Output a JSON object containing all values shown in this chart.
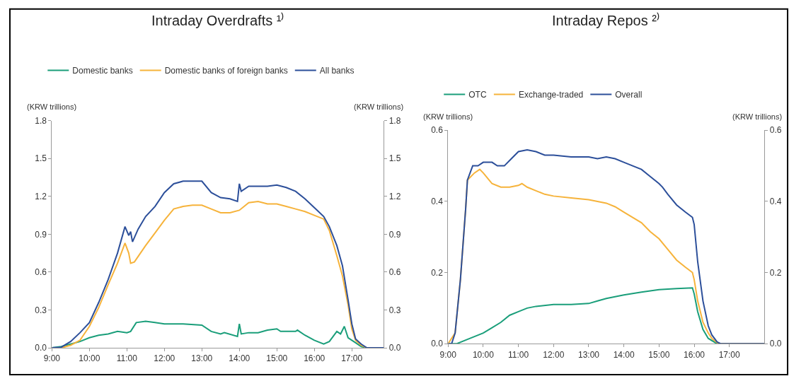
{
  "chart_data": [
    {
      "type": "line",
      "title": "Intraday Overdrafts ¹⁾",
      "ylabel": "(KRW trillions)",
      "y2label": "(KRW trillions)",
      "legend": "top left",
      "grid": false,
      "xlim": [
        9,
        17.85
      ],
      "xticks": [
        {
          "value": 9,
          "label": "9:00"
        },
        {
          "value": 10,
          "label": "10:00"
        },
        {
          "value": 11,
          "label": "11:00"
        },
        {
          "value": 12,
          "label": "12:00"
        },
        {
          "value": 13,
          "label": "13:00"
        },
        {
          "value": 14,
          "label": "14:00"
        },
        {
          "value": 15,
          "label": "15:00"
        },
        {
          "value": 16,
          "label": "16:00"
        },
        {
          "value": 17,
          "label": "17:00"
        }
      ],
      "ylim": [
        0,
        1.8
      ],
      "yticks": [
        {
          "value": 0,
          "label": "0.0"
        },
        0.3,
        0.6,
        0.9,
        1.2,
        1.5,
        1.8
      ],
      "y2lim": [
        0,
        1.8
      ],
      "y2ticks": [
        {
          "value": 0,
          "label": "0.0"
        },
        0.3,
        0.6,
        0.9,
        1.2,
        1.5,
        1.8
      ],
      "series": [
        {
          "name": "Domestic banks",
          "color": "#1a9e7a",
          "x": [
            9.0,
            9.25,
            9.5,
            9.75,
            10.0,
            10.25,
            10.5,
            10.75,
            11.0,
            11.1,
            11.25,
            11.5,
            11.75,
            12.0,
            12.5,
            13.0,
            13.25,
            13.5,
            13.6,
            13.95,
            14.0,
            14.05,
            14.25,
            14.5,
            14.75,
            15.0,
            15.1,
            15.5,
            15.55,
            15.75,
            16.0,
            16.25,
            16.4,
            16.6,
            16.7,
            16.8,
            16.9,
            17.0,
            17.1,
            17.25,
            17.4,
            17.85
          ],
          "values": [
            0,
            0.01,
            0.03,
            0.05,
            0.08,
            0.1,
            0.11,
            0.13,
            0.12,
            0.13,
            0.2,
            0.21,
            0.2,
            0.19,
            0.19,
            0.18,
            0.13,
            0.11,
            0.12,
            0.09,
            0.19,
            0.11,
            0.12,
            0.12,
            0.14,
            0.15,
            0.13,
            0.13,
            0.14,
            0.1,
            0.06,
            0.03,
            0.05,
            0.13,
            0.11,
            0.17,
            0.08,
            0.06,
            0.04,
            0.01,
            0,
            0
          ]
        },
        {
          "name": "Domestic banks of foreign banks",
          "color": "#f6b33b",
          "x": [
            9.0,
            9.25,
            9.5,
            9.75,
            10.0,
            10.25,
            10.5,
            10.75,
            10.95,
            11.05,
            11.1,
            11.2,
            11.5,
            11.75,
            12.0,
            12.25,
            12.5,
            12.75,
            13.0,
            13.25,
            13.5,
            13.75,
            14.0,
            14.25,
            14.5,
            14.75,
            15.0,
            15.25,
            15.5,
            15.75,
            16.0,
            16.25,
            16.4,
            16.6,
            16.75,
            16.9,
            17.0,
            17.1,
            17.25,
            17.4,
            17.85
          ],
          "values": [
            0,
            0,
            0.02,
            0.06,
            0.17,
            0.32,
            0.5,
            0.67,
            0.83,
            0.75,
            0.67,
            0.68,
            0.81,
            0.91,
            1.01,
            1.1,
            1.12,
            1.13,
            1.13,
            1.1,
            1.07,
            1.07,
            1.09,
            1.15,
            1.16,
            1.14,
            1.14,
            1.12,
            1.1,
            1.08,
            1.05,
            1.02,
            0.93,
            0.73,
            0.57,
            0.34,
            0.15,
            0.06,
            0.02,
            0,
            0
          ]
        },
        {
          "name": "All banks",
          "color": "#2c4f9a",
          "x": [
            9.0,
            9.25,
            9.5,
            9.75,
            10.0,
            10.25,
            10.5,
            10.75,
            10.95,
            11.05,
            11.1,
            11.15,
            11.3,
            11.5,
            11.75,
            12.0,
            12.25,
            12.5,
            12.75,
            13.0,
            13.25,
            13.5,
            13.75,
            13.95,
            14.0,
            14.05,
            14.25,
            14.5,
            14.75,
            15.0,
            15.25,
            15.5,
            15.75,
            16.0,
            16.25,
            16.4,
            16.6,
            16.75,
            16.9,
            17.0,
            17.1,
            17.25,
            17.4,
            17.85
          ],
          "values": [
            0,
            0.005,
            0.05,
            0.12,
            0.2,
            0.36,
            0.54,
            0.75,
            0.96,
            0.89,
            0.92,
            0.84,
            0.94,
            1.04,
            1.12,
            1.23,
            1.3,
            1.32,
            1.32,
            1.32,
            1.23,
            1.19,
            1.18,
            1.16,
            1.3,
            1.24,
            1.28,
            1.28,
            1.28,
            1.29,
            1.27,
            1.24,
            1.18,
            1.11,
            1.04,
            0.96,
            0.81,
            0.65,
            0.38,
            0.19,
            0.07,
            0.03,
            0,
            0
          ]
        }
      ]
    },
    {
      "type": "line",
      "title": "Intraday Repos ²⁾",
      "ylabel": "(KRW trillions)",
      "y2label": "(KRW trillions)",
      "legend": "top",
      "grid": false,
      "xlim": [
        9,
        18
      ],
      "xticks": [
        {
          "value": 9,
          "label": "9:00"
        },
        {
          "value": 10,
          "label": "10:00"
        },
        {
          "value": 11,
          "label": "11:00"
        },
        {
          "value": 12,
          "label": "12:00"
        },
        {
          "value": 13,
          "label": "13:00"
        },
        {
          "value": 14,
          "label": "14:00"
        },
        {
          "value": 15,
          "label": "15:00"
        },
        {
          "value": 16,
          "label": "16:00"
        },
        {
          "value": 17,
          "label": "17:00"
        }
      ],
      "ylim": [
        0,
        0.6
      ],
      "yticks": [
        {
          "value": 0,
          "label": "0.0"
        },
        0.2,
        0.4,
        0.6
      ],
      "y2lim": [
        0,
        0.6
      ],
      "y2ticks": [
        {
          "value": 0,
          "label": "0.0"
        },
        0.2,
        0.4,
        0.6
      ],
      "series": [
        {
          "name": "OTC",
          "color": "#1a9e7a",
          "x": [
            9.0,
            9.25,
            9.5,
            9.75,
            10.0,
            10.25,
            10.5,
            10.75,
            11.0,
            11.25,
            11.5,
            12.0,
            12.5,
            13.0,
            13.25,
            13.5,
            14.0,
            14.5,
            15.0,
            15.5,
            15.95,
            16.0,
            16.1,
            16.25,
            16.4,
            16.6,
            16.75,
            18.0
          ],
          "values": [
            0,
            0,
            0.01,
            0.02,
            0.03,
            0.045,
            0.06,
            0.08,
            0.09,
            0.1,
            0.105,
            0.11,
            0.11,
            0.113,
            0.12,
            0.127,
            0.137,
            0.145,
            0.152,
            0.155,
            0.157,
            0.14,
            0.09,
            0.04,
            0.015,
            0.003,
            0,
            0
          ]
        },
        {
          "name": "Exchange-traded",
          "color": "#f6b33b",
          "x": [
            9.0,
            9.2,
            9.35,
            9.5,
            9.55,
            9.75,
            9.9,
            10.0,
            10.25,
            10.5,
            10.75,
            11.0,
            11.1,
            11.25,
            11.5,
            11.75,
            12.0,
            12.5,
            13.0,
            13.25,
            13.5,
            13.75,
            14.0,
            14.25,
            14.5,
            14.75,
            15.0,
            15.25,
            15.5,
            15.75,
            15.95,
            16.0,
            16.1,
            16.25,
            16.4,
            16.5,
            16.65,
            16.75,
            18.0
          ],
          "values": [
            0,
            0.03,
            0.18,
            0.38,
            0.46,
            0.48,
            0.49,
            0.48,
            0.45,
            0.44,
            0.44,
            0.445,
            0.45,
            0.44,
            0.43,
            0.42,
            0.415,
            0.41,
            0.405,
            0.4,
            0.395,
            0.385,
            0.37,
            0.355,
            0.34,
            0.315,
            0.295,
            0.265,
            0.235,
            0.215,
            0.2,
            0.18,
            0.12,
            0.06,
            0.03,
            0.015,
            0.003,
            0,
            0
          ]
        },
        {
          "name": "Overall",
          "color": "#2c4f9a",
          "x": [
            9.0,
            9.1,
            9.2,
            9.35,
            9.5,
            9.55,
            9.7,
            9.85,
            10.0,
            10.25,
            10.4,
            10.6,
            10.8,
            11.0,
            11.25,
            11.5,
            11.75,
            12.0,
            12.5,
            13.0,
            13.25,
            13.5,
            13.75,
            14.0,
            14.25,
            14.5,
            14.75,
            15.0,
            15.1,
            15.25,
            15.5,
            15.75,
            15.95,
            16.0,
            16.1,
            16.25,
            16.4,
            16.5,
            16.65,
            16.75,
            18.0
          ],
          "values": [
            0,
            0,
            0.03,
            0.18,
            0.38,
            0.46,
            0.5,
            0.5,
            0.51,
            0.51,
            0.5,
            0.5,
            0.52,
            0.54,
            0.545,
            0.54,
            0.53,
            0.53,
            0.525,
            0.525,
            0.52,
            0.525,
            0.52,
            0.51,
            0.5,
            0.49,
            0.47,
            0.45,
            0.44,
            0.42,
            0.39,
            0.37,
            0.355,
            0.335,
            0.23,
            0.12,
            0.05,
            0.025,
            0.005,
            0,
            0
          ]
        }
      ]
    }
  ]
}
